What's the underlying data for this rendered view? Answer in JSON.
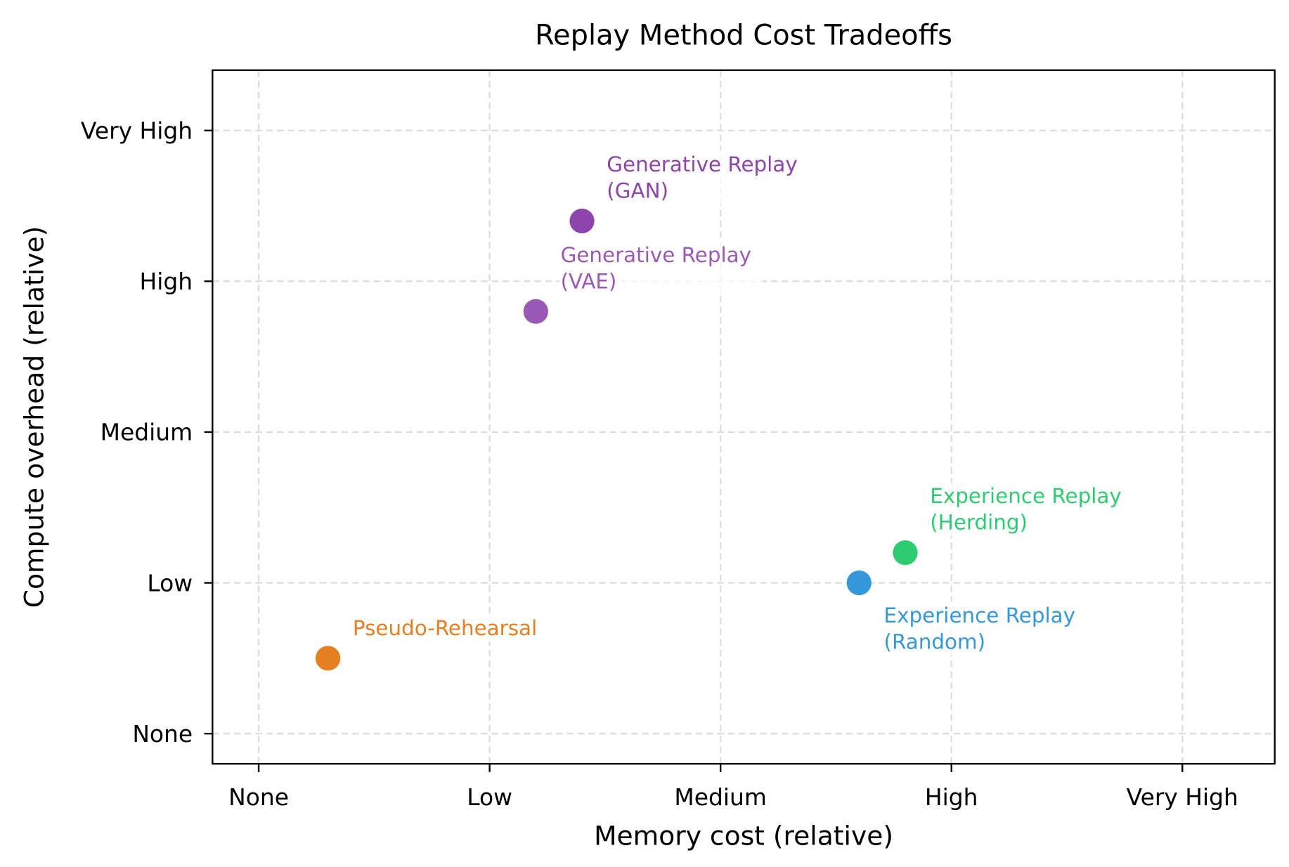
{
  "chart_data": {
    "type": "scatter",
    "title": "Replay Method Cost Tradeoffs",
    "xlabel": "Memory cost (relative)",
    "ylabel": "Compute overhead (relative)",
    "xlim": [
      -0.2,
      4.4
    ],
    "ylim": [
      -0.2,
      4.4
    ],
    "x_ticks": [
      0,
      1,
      2,
      3,
      4
    ],
    "x_tick_labels": [
      "None",
      "Low",
      "Medium",
      "High",
      "Very High"
    ],
    "y_ticks": [
      0,
      1,
      2,
      3,
      4
    ],
    "y_tick_labels": [
      "None",
      "Low",
      "Medium",
      "High",
      "Very High"
    ],
    "grid": true,
    "points": [
      {
        "label": [
          "Pseudo-Rehearsal"
        ],
        "x": 0.3,
        "y": 0.5,
        "color": "#e67e22"
      },
      {
        "label": [
          "Generative Replay",
          "(VAE)"
        ],
        "x": 1.2,
        "y": 2.8,
        "color": "#9b59b6"
      },
      {
        "label": [
          "Generative Replay",
          "(GAN)"
        ],
        "x": 1.4,
        "y": 3.4,
        "color": "#8e44ad"
      },
      {
        "label": [
          "Experience Replay",
          "(Random)"
        ],
        "x": 2.6,
        "y": 1.0,
        "color": "#3498db"
      },
      {
        "label": [
          "Experience Replay",
          "(Herding)"
        ],
        "x": 2.8,
        "y": 1.2,
        "color": "#2ecc71"
      }
    ]
  }
}
